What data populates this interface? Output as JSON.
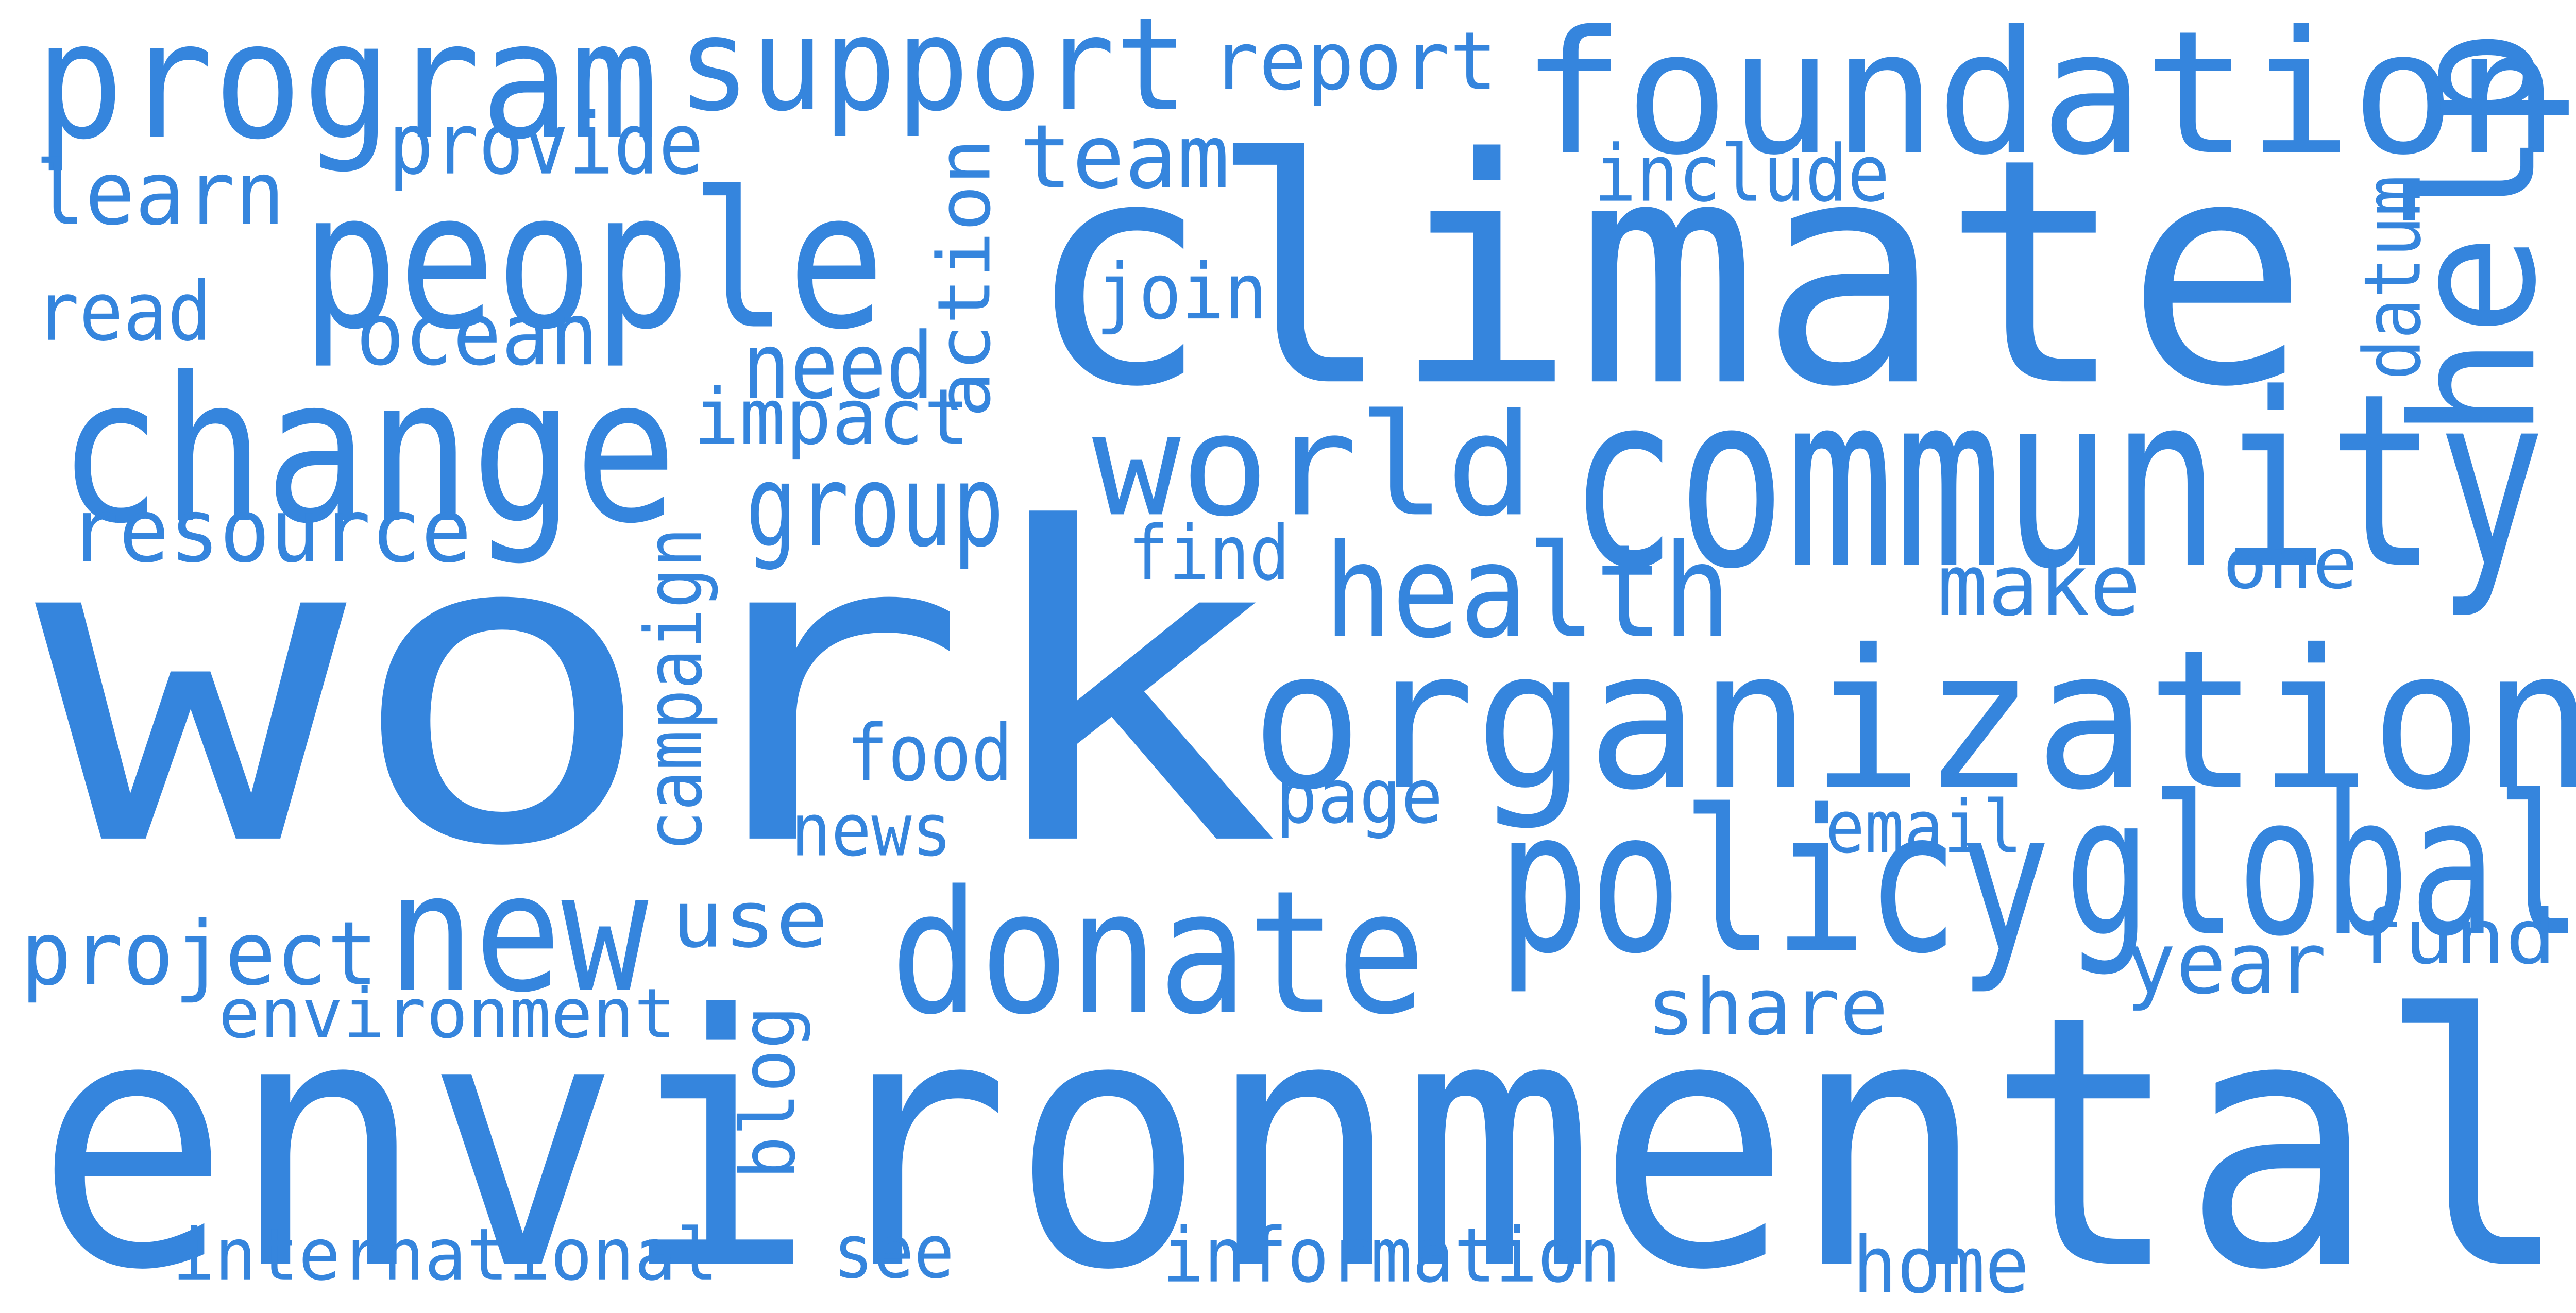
{
  "colors": {
    "word": "#3585DD",
    "background": "#FFFFFF"
  },
  "words": [
    {
      "id": "work",
      "text": "work",
      "weight": 1.0,
      "vertical": false
    },
    {
      "id": "environmental",
      "text": "environmental",
      "weight": 0.82,
      "vertical": false
    },
    {
      "id": "climate",
      "text": "climate",
      "weight": 0.65,
      "vertical": false
    },
    {
      "id": "organization",
      "text": "organization",
      "weight": 0.46,
      "vertical": false
    },
    {
      "id": "community",
      "text": "community",
      "weight": 0.46,
      "vertical": false
    },
    {
      "id": "foundation",
      "text": "foundation",
      "weight": 0.36,
      "vertical": false
    },
    {
      "id": "policy",
      "text": "policy",
      "weight": 0.4,
      "vertical": false
    },
    {
      "id": "change",
      "text": "change",
      "weight": 0.38,
      "vertical": false
    },
    {
      "id": "people",
      "text": "people",
      "weight": 0.36,
      "vertical": false
    },
    {
      "id": "global",
      "text": "global",
      "weight": 0.34,
      "vertical": false
    },
    {
      "id": "donate",
      "text": "donate",
      "weight": 0.34,
      "vertical": false
    },
    {
      "id": "program",
      "text": "program",
      "weight": 0.3,
      "vertical": false
    },
    {
      "id": "support",
      "text": "support",
      "weight": 0.3,
      "vertical": false
    },
    {
      "id": "world",
      "text": "world",
      "weight": 0.3,
      "vertical": false
    },
    {
      "id": "new",
      "text": "new",
      "weight": 0.3,
      "vertical": false
    },
    {
      "id": "help",
      "text": "help",
      "weight": 0.3,
      "vertical": true
    },
    {
      "id": "health",
      "text": "health",
      "weight": 0.22,
      "vertical": false
    },
    {
      "id": "resource",
      "text": "resource",
      "weight": 0.15,
      "vertical": false
    },
    {
      "id": "group",
      "text": "group",
      "weight": 0.15,
      "vertical": false
    },
    {
      "id": "action",
      "text": "action",
      "weight": 0.15,
      "vertical": true
    },
    {
      "id": "team",
      "text": "team",
      "weight": 0.14,
      "vertical": false
    },
    {
      "id": "need",
      "text": "need",
      "weight": 0.14,
      "vertical": false
    },
    {
      "id": "ocean",
      "text": "ocean",
      "weight": 0.14,
      "vertical": false
    },
    {
      "id": "learn",
      "text": "learn",
      "weight": 0.14,
      "vertical": false
    },
    {
      "id": "report",
      "text": "report",
      "weight": 0.13,
      "vertical": false
    },
    {
      "id": "provide",
      "text": "provide",
      "weight": 0.13,
      "vertical": false
    },
    {
      "id": "include",
      "text": "include",
      "weight": 0.13,
      "vertical": false
    },
    {
      "id": "read",
      "text": "read",
      "weight": 0.13,
      "vertical": false
    },
    {
      "id": "join",
      "text": "join",
      "weight": 0.13,
      "vertical": false
    },
    {
      "id": "impact",
      "text": "impact",
      "weight": 0.13,
      "vertical": false
    },
    {
      "id": "datum",
      "text": "datum",
      "weight": 0.12,
      "vertical": true
    },
    {
      "id": "find",
      "text": "find",
      "weight": 0.12,
      "vertical": false
    },
    {
      "id": "make",
      "text": "make",
      "weight": 0.14,
      "vertical": false
    },
    {
      "id": "one",
      "text": "one",
      "weight": 0.12,
      "vertical": false
    },
    {
      "id": "campaign",
      "text": "campaign",
      "weight": 0.12,
      "vertical": true
    },
    {
      "id": "food",
      "text": "food",
      "weight": 0.13,
      "vertical": false
    },
    {
      "id": "news",
      "text": "news",
      "weight": 0.12,
      "vertical": false
    },
    {
      "id": "page",
      "text": "page",
      "weight": 0.13,
      "vertical": false
    },
    {
      "id": "email",
      "text": "email",
      "weight": 0.12,
      "vertical": false
    },
    {
      "id": "project",
      "text": "project",
      "weight": 0.14,
      "vertical": false
    },
    {
      "id": "use",
      "text": "use",
      "weight": 0.13,
      "vertical": false
    },
    {
      "id": "year",
      "text": "year",
      "weight": 0.13,
      "vertical": false
    },
    {
      "id": "fund",
      "text": "fund",
      "weight": 0.12,
      "vertical": false
    },
    {
      "id": "environment",
      "text": "environment",
      "weight": 0.12,
      "vertical": false
    },
    {
      "id": "share",
      "text": "share",
      "weight": 0.12,
      "vertical": false
    },
    {
      "id": "blog",
      "text": "blog",
      "weight": 0.11,
      "vertical": true
    },
    {
      "id": "international",
      "text": "international",
      "weight": 0.12,
      "vertical": false
    },
    {
      "id": "see",
      "text": "see",
      "weight": 0.11,
      "vertical": false
    },
    {
      "id": "information",
      "text": "information",
      "weight": 0.12,
      "vertical": false
    },
    {
      "id": "home",
      "text": "home",
      "weight": 0.11,
      "vertical": false
    }
  ]
}
